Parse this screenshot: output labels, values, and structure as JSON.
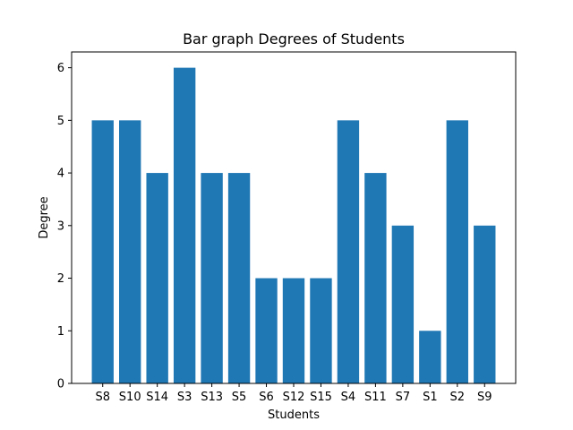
{
  "chart_data": {
    "type": "bar",
    "title": "Bar graph Degrees of Students",
    "xlabel": "Students",
    "ylabel": "Degree",
    "categories": [
      "S8",
      "S10",
      "S14",
      "S3",
      "S13",
      "S5",
      "S6",
      "S12",
      "S15",
      "S4",
      "S11",
      "S7",
      "S1",
      "S2",
      "S9"
    ],
    "values": [
      5,
      5,
      4,
      6,
      4,
      4,
      2,
      2,
      2,
      5,
      4,
      3,
      1,
      5,
      3
    ],
    "ylim": [
      0,
      6.3
    ],
    "yticks": [
      "0",
      "1",
      "2",
      "3",
      "4",
      "5",
      "6"
    ],
    "bar_color": "#1f77b4",
    "grid": false,
    "legend": "none"
  }
}
